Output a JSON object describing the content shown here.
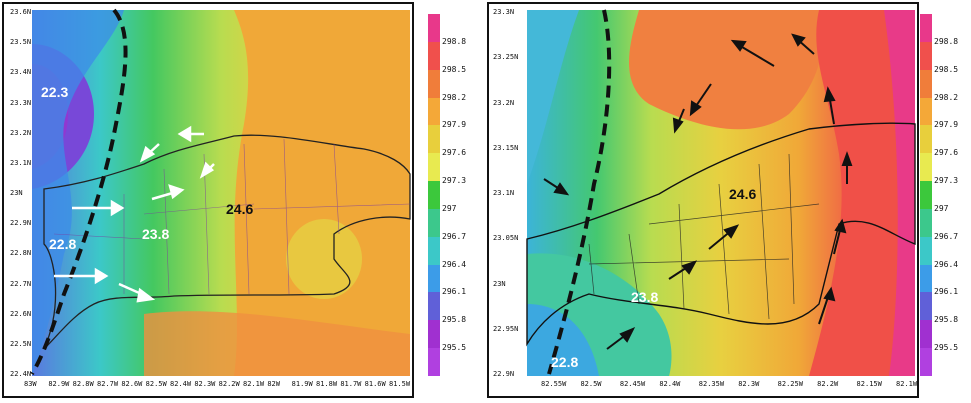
{
  "left_map": {
    "lat_labels": [
      "23.6N",
      "23.5N",
      "23.4N",
      "23.3N",
      "23.2N",
      "23.1N",
      "23N",
      "22.9N",
      "22.8N",
      "22.7N",
      "22.6N",
      "22.5N",
      "22.4N"
    ],
    "lon_labels": [
      "83W",
      "82.9W",
      "82.8W",
      "82.7W",
      "82.6W",
      "82.5W",
      "82.4W",
      "82.3W",
      "82.2W",
      "82.1W",
      "82W",
      "81.9W",
      "81.8W",
      "81.7W",
      "81.6W",
      "81.5W"
    ],
    "temps": [
      {
        "text": "22.3",
        "color": "white"
      },
      {
        "text": "24.6",
        "color": "black"
      },
      {
        "text": "23.8",
        "color": "white"
      },
      {
        "text": "22.8",
        "color": "white"
      }
    ],
    "wind_arrows_color": "#ffffff",
    "front_style": "dashed"
  },
  "right_map": {
    "lat_labels": [
      "23.3N",
      "23.25N",
      "23.2N",
      "23.15N",
      "23.1N",
      "23.05N",
      "23N",
      "22.95N",
      "22.9N"
    ],
    "lon_labels": [
      "82.55W",
      "82.5W",
      "82.45W",
      "82.4W",
      "82.35W",
      "82.3W",
      "82.25W",
      "82.2W",
      "82.15W",
      "82.1W"
    ],
    "temps": [
      {
        "text": "24.6",
        "color": "black"
      },
      {
        "text": "23.8",
        "color": "white"
      },
      {
        "text": "22.8",
        "color": "white"
      }
    ],
    "wind_arrows_color": "#111111",
    "front_style": "dashed"
  },
  "colorbar": {
    "labels": [
      "298.8",
      "298.5",
      "298.2",
      "297.9",
      "297.6",
      "297.3",
      "297",
      "296.7",
      "296.4",
      "296.1",
      "295.8",
      "295.5"
    ],
    "colors": [
      "#e8388a",
      "#f0504c",
      "#f07d3a",
      "#f4a838",
      "#e8cf3c",
      "#e8ea50",
      "#3cc83c",
      "#3cc88c",
      "#3cc8c8",
      "#3c9ce8",
      "#6060d8",
      "#a030d0",
      "#b040e0"
    ]
  }
}
